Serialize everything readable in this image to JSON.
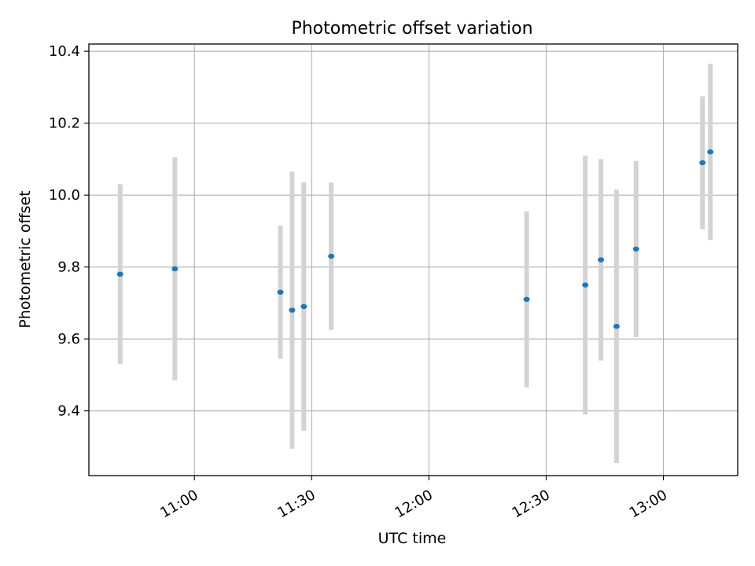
{
  "chart_data": {
    "type": "scatter",
    "title": "Photometric offset variation",
    "xlabel": "UTC time",
    "ylabel": "Photometric offset",
    "x_unit": "time",
    "xlim": [
      "10:33",
      "13:19"
    ],
    "ylim": [
      9.22,
      10.42
    ],
    "x_ticks": [
      "11:00",
      "11:30",
      "12:00",
      "12:30",
      "13:00"
    ],
    "y_ticks": [
      9.4,
      9.6,
      9.8,
      10.0,
      10.2,
      10.4
    ],
    "y_tick_labels": [
      "9.4",
      "9.6",
      "9.8",
      "10.0",
      "10.2",
      "10.4"
    ],
    "grid": true,
    "colors": {
      "point": "#1f77b4",
      "errorbar": "#d3d3d3",
      "grid": "#b0b0b0"
    },
    "series": [
      {
        "points": [
          {
            "x": "10:41",
            "y": 9.78,
            "err": 0.25
          },
          {
            "x": "10:55",
            "y": 9.795,
            "err": 0.31
          },
          {
            "x": "11:22",
            "y": 9.73,
            "err": 0.185
          },
          {
            "x": "11:25",
            "y": 9.68,
            "err": 0.385
          },
          {
            "x": "11:28",
            "y": 9.69,
            "err": 0.345
          },
          {
            "x": "11:35",
            "y": 9.83,
            "err": 0.205
          },
          {
            "x": "12:25",
            "y": 9.71,
            "err": 0.245
          },
          {
            "x": "12:40",
            "y": 9.75,
            "err": 0.36
          },
          {
            "x": "12:44",
            "y": 9.82,
            "err": 0.28
          },
          {
            "x": "12:48",
            "y": 9.635,
            "err": 0.38
          },
          {
            "x": "12:53",
            "y": 9.85,
            "err": 0.245
          },
          {
            "x": "13:10",
            "y": 10.09,
            "err": 0.185
          },
          {
            "x": "13:12",
            "y": 10.12,
            "err": 0.245
          }
        ]
      }
    ]
  }
}
